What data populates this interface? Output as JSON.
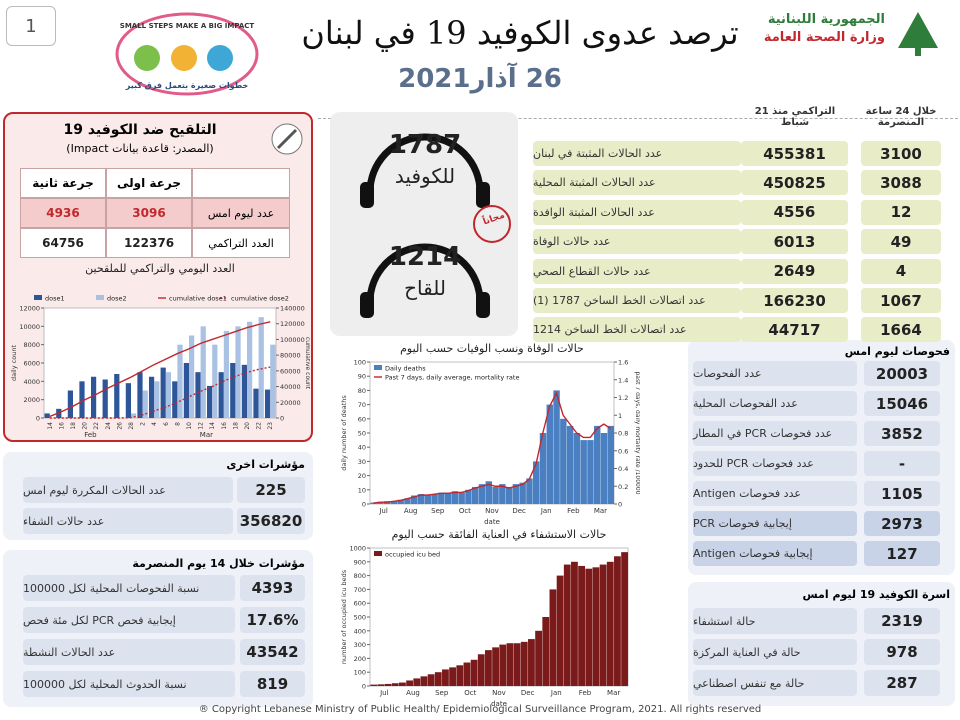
{
  "header": {
    "page_number": "1",
    "title": "ترصد عدوى الكوفيد 19 في لبنان",
    "date": "26 آذار2021",
    "republic": "الجمهورية اللبنانية",
    "ministry": "وزارة الصحة العامة",
    "slogan_en": "SMALL STEPS MAKE A BIG IMPACT",
    "slogan_ar": "خطوات صغيرة بتعمل فرق كبير"
  },
  "hotlines": [
    {
      "number": "1787",
      "label": "للكوفيد"
    },
    {
      "number": "1214",
      "label": "للقاح"
    }
  ],
  "free_stamp": "مجاناً",
  "main_table": {
    "daily_header": "خلال 24 ساعة المنصرمة",
    "cumulative_header": "التراكمي منذ 21 شباط",
    "rows": [
      {
        "label": "عدد الحالات المثبتة في لبنان",
        "cumulative": 455381,
        "daily": 3100
      },
      {
        "label": "عدد الحالات المثبتة المحلية",
        "cumulative": 450825,
        "daily": 3088
      },
      {
        "label": "عدد الحالات المثبتة الوافدة",
        "cumulative": 4556,
        "daily": 12
      },
      {
        "label": "عدد حالات الوفاة",
        "cumulative": 6013,
        "daily": 49
      },
      {
        "label": "عدد حالات القطاع الصحي",
        "cumulative": 2649,
        "daily": 4
      },
      {
        "label": "عدد اتصالات الخط الساخن 1787 (1)",
        "cumulative": 166230,
        "daily": 1067
      },
      {
        "label": "عدد اتصالات الخط الساخن 1214",
        "cumulative": 44717,
        "daily": 1664
      }
    ]
  },
  "vaccination": {
    "title": "التلقيح ضد الكوفيد 19",
    "source": "(المصدر: قاعدة بيانات Impact)",
    "dose1_header": "جرعة اولى",
    "dose2_header": "جرعة ثانية",
    "rows": [
      {
        "label": "عدد ليوم امس",
        "dose1": 3096,
        "dose2": 4936
      },
      {
        "label": "العدد التراكمي",
        "dose1": 122376,
        "dose2": 64756
      }
    ]
  },
  "other_indicators": {
    "title": "مؤشرات اخرى",
    "rows": [
      {
        "label": "عدد الحالات المكررة ليوم امس",
        "value": 225
      },
      {
        "label": "عدد حالات الشفاء",
        "value": 356820
      }
    ]
  },
  "indicators_14_days": {
    "title": "مؤشرات خلال 14 يوم المنصرمة",
    "rows": [
      {
        "label": "نسبة الفحوصات المحلية لكل 100000",
        "value": 4393
      },
      {
        "label": "إيجابية فحص PCR لكل مئة فحص",
        "value": "17.6%"
      },
      {
        "label": "عدد الحالات النشطة",
        "value": 43542
      },
      {
        "label": "نسبة الحدوث المحلية لكل 100000",
        "value": 819
      }
    ]
  },
  "tests": {
    "title": "فحوصات ليوم امس",
    "rows": [
      {
        "label": "عدد الفحوصات",
        "value": 20003
      },
      {
        "label": "عدد الفحوصات المحلية",
        "value": 15046
      },
      {
        "label": "عدد فحوصات PCR في المطار",
        "value": 3852
      },
      {
        "label": "عدد فحوصات PCR للحدود",
        "value": "-"
      },
      {
        "label": "عدد فحوصات Antigen",
        "value": 1105
      },
      {
        "label": "إيجابية فحوصات PCR",
        "value": 2973
      },
      {
        "label": "إيجابية فحوصات Antigen",
        "value": 127
      }
    ]
  },
  "covid_family": {
    "title": "اسرة الكوفيد 19 ليوم امس",
    "rows": [
      {
        "label": "حالة استشفاء",
        "value": 2319
      },
      {
        "label": "حالة في العناية المركزة",
        "value": 978
      },
      {
        "label": "حالة مع تنفس اصطناعي",
        "value": 287
      }
    ]
  },
  "chart_data": [
    {
      "type": "bar",
      "title": "العدد اليومي والتراكمي للملقحين",
      "ylabel": "daily count",
      "y2label": "cumulative count",
      "categories": [
        "14",
        "16",
        "18",
        "20",
        "22",
        "24",
        "26",
        "28",
        "2",
        "4",
        "6",
        "8",
        "10",
        "12",
        "14",
        "16",
        "18",
        "20",
        "22",
        "23"
      ],
      "x_groups": [
        "Feb",
        "Mar"
      ],
      "ylim": [
        0,
        12000
      ],
      "yticks": [
        0,
        2000,
        4000,
        6000,
        8000,
        10000,
        12000
      ],
      "y2lim": [
        0,
        140000
      ],
      "y2ticks": [
        0,
        20000,
        40000,
        60000,
        80000,
        100000,
        120000,
        140000
      ],
      "series": [
        {
          "name": "dose1",
          "type": "bar",
          "color": "#2e5597",
          "values": [
            500,
            1000,
            3000,
            4000,
            4500,
            4200,
            4800,
            3800,
            5000,
            4500,
            5500,
            4000,
            6000,
            5000,
            3500,
            5000,
            6000,
            5800,
            3200,
            3100
          ]
        },
        {
          "name": "dose2",
          "type": "bar",
          "color": "#a9c1e3",
          "values": [
            0,
            0,
            0,
            0,
            0,
            0,
            0,
            500,
            3000,
            4000,
            5000,
            8000,
            9000,
            10000,
            8000,
            9500,
            10000,
            10500,
            11000,
            8000
          ]
        },
        {
          "name": "cumulative dose1",
          "type": "line",
          "axis": "y2",
          "color": "#c0282d",
          "values": [
            2000,
            8000,
            15000,
            23000,
            30000,
            38000,
            45000,
            52000,
            60000,
            68000,
            75000,
            82000,
            88000,
            95000,
            100000,
            105000,
            110000,
            115000,
            119000,
            122376
          ]
        },
        {
          "name": "cumulative dose2",
          "type": "line",
          "axis": "y2",
          "dash": "dotted",
          "color": "#c0282d",
          "values": [
            0,
            0,
            0,
            0,
            0,
            0,
            0,
            500,
            4000,
            9000,
            14000,
            20000,
            27000,
            34000,
            40000,
            47000,
            53000,
            58000,
            62000,
            64756
          ]
        }
      ]
    },
    {
      "type": "bar",
      "title": "حالات الوفاة ونسب الوفيات حسب اليوم",
      "ylabel": "daily number of deaths",
      "y2label": "past 7 days, daily mortality rate /100000",
      "xlabel": "date",
      "categories": [
        "Jul",
        null,
        null,
        null,
        "Aug",
        null,
        null,
        null,
        "Sep",
        null,
        null,
        null,
        "Oct",
        null,
        null,
        null,
        "Nov",
        null,
        null,
        null,
        "Dec",
        null,
        null,
        null,
        "Jan",
        null,
        null,
        null,
        "Feb",
        null,
        null,
        null,
        "Mar",
        null,
        null,
        null
      ],
      "ylim": [
        0,
        100
      ],
      "yticks": [
        0,
        10,
        20,
        30,
        40,
        50,
        60,
        70,
        80,
        90,
        100
      ],
      "y2lim": [
        0,
        1.6
      ],
      "y2ticks": [
        0,
        0.2,
        0.4,
        0.6,
        0.8,
        1,
        1.2,
        1.4,
        1.6
      ],
      "legend": "upper left",
      "series": [
        {
          "name": "Daily deaths",
          "type": "bar",
          "color": "#4a7fc1",
          "values": [
            1,
            1,
            2,
            2,
            3,
            4,
            6,
            7,
            6,
            7,
            8,
            8,
            9,
            8,
            10,
            12,
            14,
            16,
            12,
            14,
            12,
            14,
            15,
            18,
            30,
            50,
            70,
            80,
            60,
            55,
            50,
            45,
            45,
            55,
            50,
            55
          ]
        },
        {
          "name": "Past 7 days, daily average, mortality rate",
          "type": "line",
          "axis": "y2",
          "color": "#c0282d",
          "values": [
            0.01,
            0.02,
            0.02,
            0.03,
            0.04,
            0.06,
            0.08,
            0.1,
            0.1,
            0.11,
            0.12,
            0.12,
            0.13,
            0.13,
            0.15,
            0.18,
            0.2,
            0.22,
            0.2,
            0.2,
            0.18,
            0.2,
            0.22,
            0.28,
            0.45,
            0.8,
            1.1,
            1.25,
            1,
            0.9,
            0.8,
            0.75,
            0.75,
            0.85,
            0.9,
            0.85
          ]
        }
      ]
    },
    {
      "type": "bar",
      "title": "حالات الاستشفاء في العناية الفائقة حسب اليوم",
      "ylabel": "number of occupied icu beds",
      "xlabel": "date",
      "categories": [
        "Jul",
        null,
        null,
        null,
        "Aug",
        null,
        null,
        null,
        "Sep",
        null,
        null,
        null,
        "Oct",
        null,
        null,
        null,
        "Nov",
        null,
        null,
        null,
        "Dec",
        null,
        null,
        null,
        "Jan",
        null,
        null,
        null,
        "Feb",
        null,
        null,
        null,
        "Mar",
        null,
        null,
        null
      ],
      "ylim": [
        0,
        1000
      ],
      "yticks": [
        0,
        100,
        200,
        300,
        400,
        500,
        600,
        700,
        800,
        900,
        1000
      ],
      "legend": "upper left",
      "series": [
        {
          "name": "occupied icu bed",
          "type": "bar",
          "color": "#7b1a1a",
          "values": [
            10,
            12,
            15,
            20,
            25,
            40,
            55,
            70,
            85,
            100,
            120,
            135,
            150,
            170,
            190,
            230,
            260,
            280,
            300,
            310,
            310,
            320,
            340,
            400,
            500,
            700,
            800,
            880,
            900,
            870,
            850,
            860,
            880,
            900,
            940,
            970
          ]
        }
      ]
    }
  ],
  "footer": "® Copyright Lebanese Ministry of Public Health/ Epidemiological Surveillance Program, 2021. All rights reserved"
}
